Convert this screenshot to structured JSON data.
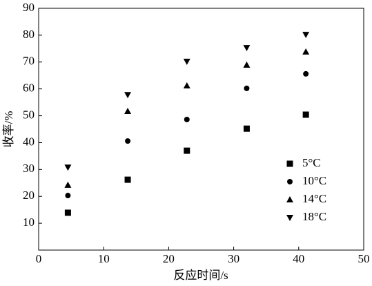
{
  "chart_data": {
    "type": "scatter",
    "xlabel": "反应时间/s",
    "ylabel": "收率/%",
    "x": [
      4.5,
      13.7,
      22.8,
      32.0,
      41.1
    ],
    "series": [
      {
        "name": "5°C",
        "color": "#000000",
        "marker": "square",
        "values": [
          13.9,
          26.2,
          37.0,
          45.2,
          50.4
        ]
      },
      {
        "name": "10°C",
        "color": "#000000",
        "marker": "circle",
        "values": [
          20.3,
          40.6,
          48.6,
          60.2,
          65.6
        ]
      },
      {
        "name": "14°C",
        "color": "#000000",
        "marker": "triangle-up",
        "values": [
          24.2,
          51.7,
          61.2,
          68.9,
          73.8
        ]
      },
      {
        "name": "18°C",
        "color": "#000000",
        "marker": "triangle-down",
        "values": [
          30.8,
          57.8,
          70.2,
          75.3,
          80.2
        ]
      }
    ],
    "xlim": [
      0,
      50
    ],
    "xticks": [
      0,
      10,
      20,
      30,
      40,
      50
    ],
    "ylim": [
      0,
      90
    ],
    "yticks": [
      10,
      20,
      30,
      40,
      50,
      60,
      70,
      80,
      90
    ],
    "grid": false,
    "legend": "lower right"
  }
}
